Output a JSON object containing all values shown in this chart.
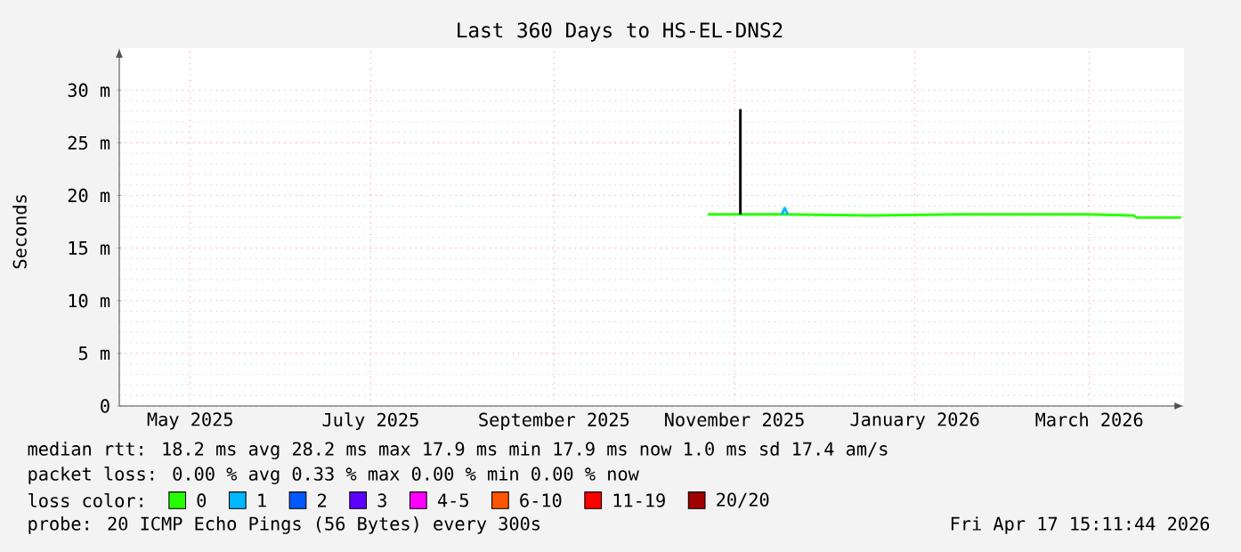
{
  "chart_data": {
    "type": "line",
    "title": "Last 360 Days to HS-EL-DNS2",
    "ylabel": "Seconds",
    "xlim": [
      "2025-04-22",
      "2026-04-17"
    ],
    "ylim": [
      0,
      34
    ],
    "xticks": [
      {
        "value": "2025-05-16",
        "label": "May 2025"
      },
      {
        "value": "2025-07-16",
        "label": "July 2025"
      },
      {
        "value": "2025-09-16",
        "label": "September 2025"
      },
      {
        "value": "2025-11-16",
        "label": "November 2025"
      },
      {
        "value": "2026-01-16",
        "label": "January 2026"
      },
      {
        "value": "2026-03-16",
        "label": "March 2026"
      }
    ],
    "yticks": [
      0,
      {
        "value": 5,
        "label": "5 m"
      },
      {
        "value": 10,
        "label": "10 m"
      },
      {
        "value": 15,
        "label": "15 m"
      },
      {
        "value": 20,
        "label": "20 m"
      },
      {
        "value": 25,
        "label": "25 m"
      },
      {
        "value": 30,
        "label": "30 m"
      }
    ],
    "grid": true,
    "legend": "bottom",
    "legend_title": "loss color:",
    "marker": "none",
    "line_style": "solid",
    "series": [
      {
        "name": "0",
        "color": "#26ff00",
        "x": [
          "2025-11-07",
          "2025-11-18",
          "2025-12-02",
          "2026-01-01",
          "2026-02-01",
          "2026-03-15",
          "2026-03-31",
          "2026-04-01",
          "2026-04-16"
        ],
        "values": [
          18.2,
          18.2,
          18.2,
          18.1,
          18.2,
          18.2,
          18.1,
          17.9,
          17.9
        ]
      },
      {
        "name": "1",
        "color": "#00b8ff",
        "x": [
          "2025-12-02",
          "2025-12-03",
          "2025-12-04"
        ],
        "values": [
          18.2,
          18.8,
          18.2
        ]
      },
      {
        "name": "2",
        "color": "#0059ff"
      },
      {
        "name": "3",
        "color": "#5e00ff"
      },
      {
        "name": "4-5",
        "color": "#ff00ff"
      },
      {
        "name": "6-10",
        "color": "#ff5500"
      },
      {
        "name": "11-19",
        "color": "#ff0000"
      },
      {
        "name": "20/20",
        "color": "#a10000"
      },
      {
        "color": "#000000",
        "x": [
          "2025-11-18",
          "2025-11-18"
        ],
        "values": [
          18.2,
          28.2
        ]
      }
    ],
    "annotations": [
      "median rtt: 18.2 ms avg 28.2 ms max 17.9 ms min 17.9 ms now 1.0 ms sd 17.4 am/s",
      "packet loss: 0.00 % avg 0.33 % max 0.00 % min 0.00 % now",
      "probe: 20 ICMP Echo Pings (56 Bytes) every 300s",
      "Fri Apr 17 15:11:44 2026"
    ]
  }
}
